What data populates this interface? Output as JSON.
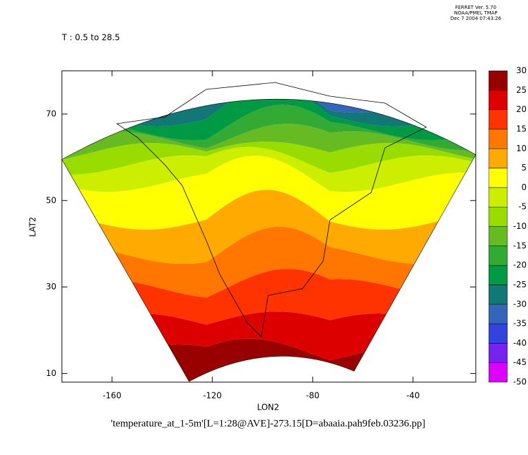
{
  "header": [
    "FERRET Ver. 5.70",
    "NOAA/PMEL TMAP",
    "Dec  7 2004 07:43:26"
  ],
  "chart_data": {
    "type": "filled-contour-map",
    "subtitle": "T : 0.5 to 28.5",
    "x_label": "LON2",
    "y_label": "LAT2",
    "caption": "'temperature_at_1-5m'[L=1:28@AVE]-273.15[D=abaaia.pah9feb.03236.pp]",
    "xlim": [
      -180,
      -15
    ],
    "xticks": [
      -160,
      -120,
      -80,
      -40
    ],
    "ylim": [
      8,
      80
    ],
    "yticks": [
      10,
      30,
      50,
      70
    ],
    "colorbar": {
      "levels": [
        -50,
        -45,
        -40,
        -35,
        -30,
        -25,
        -20,
        -15,
        -10,
        -5,
        0,
        5,
        10,
        15,
        20,
        25,
        30
      ],
      "colors": [
        "#dd00ff",
        "#7722ee",
        "#3344dd",
        "#3366bb",
        "#117777",
        "#009944",
        "#33aa33",
        "#66bb22",
        "#99dd00",
        "#ccee00",
        "#ffff00",
        "#ffaa00",
        "#ff7700",
        "#ff3300",
        "#dd0000",
        "#990000"
      ]
    }
  }
}
